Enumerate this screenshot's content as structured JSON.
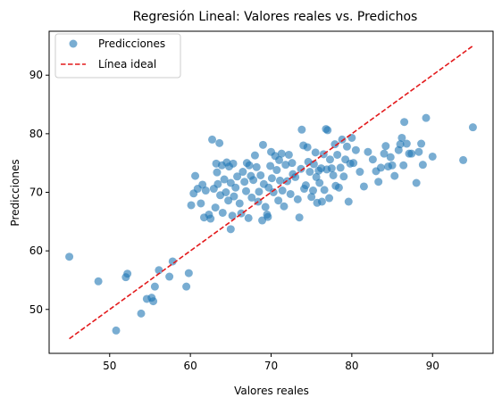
{
  "chart_data": {
    "type": "scatter",
    "title": "Regresión Lineal: Valores reales vs. Predichos",
    "xlabel": "Valores reales",
    "ylabel": "Predicciones",
    "xlim": [
      42.5,
      97.5
    ],
    "ylim": [
      42.5,
      97.5
    ],
    "xticks": [
      50,
      60,
      70,
      80,
      90
    ],
    "yticks": [
      50,
      60,
      70,
      80,
      90
    ],
    "grid": false,
    "legend_position": "top-left",
    "colors": {
      "points": "#1f77b4",
      "ideal_line": "#e31a1c"
    },
    "series": [
      {
        "name": "Predicciones",
        "kind": "scatter",
        "points": [
          [
            45.0,
            59.0
          ],
          [
            48.6,
            54.8
          ],
          [
            50.8,
            46.4
          ],
          [
            52.0,
            55.5
          ],
          [
            52.2,
            56.1
          ],
          [
            53.9,
            49.3
          ],
          [
            54.6,
            51.8
          ],
          [
            55.2,
            52.0
          ],
          [
            55.4,
            51.4
          ],
          [
            55.6,
            53.9
          ],
          [
            56.1,
            56.7
          ],
          [
            57.4,
            55.6
          ],
          [
            57.8,
            58.2
          ],
          [
            59.5,
            53.9
          ],
          [
            59.8,
            56.2
          ],
          [
            60.1,
            67.8
          ],
          [
            60.4,
            69.8
          ],
          [
            60.6,
            72.8
          ],
          [
            60.9,
            70.6
          ],
          [
            61.3,
            68.1
          ],
          [
            61.5,
            71.3
          ],
          [
            61.7,
            65.7
          ],
          [
            61.9,
            70.3
          ],
          [
            62.3,
            66.2
          ],
          [
            62.5,
            65.5
          ],
          [
            62.7,
            79.0
          ],
          [
            62.9,
            70.6
          ],
          [
            63.1,
            67.4
          ],
          [
            63.2,
            74.9
          ],
          [
            63.3,
            73.4
          ],
          [
            63.4,
            71.4
          ],
          [
            63.6,
            78.4
          ],
          [
            63.7,
            69.5
          ],
          [
            63.9,
            74.6
          ],
          [
            64.0,
            66.5
          ],
          [
            64.2,
            72.2
          ],
          [
            64.4,
            70.0
          ],
          [
            64.5,
            75.1
          ],
          [
            64.7,
            68.6
          ],
          [
            64.8,
            74.4
          ],
          [
            65.0,
            71.6
          ],
          [
            65.0,
            63.7
          ],
          [
            65.2,
            66.0
          ],
          [
            65.3,
            74.9
          ],
          [
            65.4,
            69.3
          ],
          [
            65.6,
            70.8
          ],
          [
            65.8,
            72.7
          ],
          [
            66.1,
            68.1
          ],
          [
            66.3,
            66.4
          ],
          [
            66.5,
            73.5
          ],
          [
            66.7,
            71.8
          ],
          [
            66.9,
            70.2
          ],
          [
            67.0,
            75.0
          ],
          [
            67.2,
            65.6
          ],
          [
            67.3,
            74.6
          ],
          [
            67.5,
            72.8
          ],
          [
            67.6,
            69.1
          ],
          [
            67.8,
            72.1
          ],
          [
            68.0,
            76.3
          ],
          [
            68.2,
            74.3
          ],
          [
            68.4,
            68.4
          ],
          [
            68.5,
            70.1
          ],
          [
            68.7,
            72.9
          ],
          [
            68.9,
            65.2
          ],
          [
            69.0,
            78.1
          ],
          [
            69.1,
            71.4
          ],
          [
            69.3,
            67.5
          ],
          [
            69.5,
            66.2
          ],
          [
            69.6,
            65.8
          ],
          [
            69.7,
            70.8
          ],
          [
            69.9,
            74.5
          ],
          [
            70.0,
            76.9
          ],
          [
            70.1,
            72.4
          ],
          [
            70.3,
            70.0
          ],
          [
            70.5,
            76.2
          ],
          [
            70.7,
            73.8
          ],
          [
            70.9,
            68.6
          ],
          [
            71.0,
            75.5
          ],
          [
            71.1,
            72.0
          ],
          [
            71.3,
            76.6
          ],
          [
            71.4,
            70.3
          ],
          [
            71.6,
            67.6
          ],
          [
            71.8,
            74.7
          ],
          [
            72.0,
            71.9
          ],
          [
            72.2,
            76.4
          ],
          [
            72.4,
            69.7
          ],
          [
            72.6,
            75.0
          ],
          [
            72.7,
            73.1
          ],
          [
            73.0,
            72.6
          ],
          [
            73.3,
            68.8
          ],
          [
            73.5,
            65.7
          ],
          [
            73.7,
            74.0
          ],
          [
            73.8,
            80.7
          ],
          [
            74.0,
            78.0
          ],
          [
            74.1,
            70.6
          ],
          [
            74.3,
            71.2
          ],
          [
            74.5,
            77.7
          ],
          [
            74.6,
            75.2
          ],
          [
            74.8,
            73.5
          ],
          [
            75.0,
            69.2
          ],
          [
            75.2,
            70.3
          ],
          [
            75.3,
            74.8
          ],
          [
            75.5,
            76.8
          ],
          [
            75.6,
            72.6
          ],
          [
            75.7,
            68.2
          ],
          [
            75.9,
            73.7
          ],
          [
            76.0,
            71.6
          ],
          [
            76.2,
            74.1
          ],
          [
            76.3,
            68.4
          ],
          [
            76.5,
            76.5
          ],
          [
            76.6,
            70.4
          ],
          [
            76.8,
            80.8
          ],
          [
            76.9,
            73.9
          ],
          [
            77.0,
            80.6
          ],
          [
            77.2,
            69.0
          ],
          [
            77.3,
            75.6
          ],
          [
            77.5,
            74.1
          ],
          [
            77.7,
            72.9
          ],
          [
            77.9,
            78.2
          ],
          [
            78.0,
            71.1
          ],
          [
            78.2,
            76.4
          ],
          [
            78.4,
            70.8
          ],
          [
            78.6,
            74.2
          ],
          [
            78.8,
            79.0
          ],
          [
            79.0,
            72.7
          ],
          [
            79.2,
            75.6
          ],
          [
            79.4,
            77.8
          ],
          [
            79.6,
            68.4
          ],
          [
            79.8,
            74.9
          ],
          [
            80.0,
            79.3
          ],
          [
            80.2,
            75.0
          ],
          [
            80.5,
            77.2
          ],
          [
            81.0,
            73.5
          ],
          [
            81.5,
            71.0
          ],
          [
            82.0,
            76.9
          ],
          [
            82.6,
            75.6
          ],
          [
            83.0,
            73.6
          ],
          [
            83.3,
            71.8
          ],
          [
            83.6,
            74.2
          ],
          [
            84.0,
            76.6
          ],
          [
            84.2,
            77.9
          ],
          [
            84.5,
            74.4
          ],
          [
            84.8,
            76.0
          ],
          [
            85.0,
            74.6
          ],
          [
            85.3,
            72.8
          ],
          [
            85.8,
            77.2
          ],
          [
            86.0,
            78.2
          ],
          [
            86.2,
            79.3
          ],
          [
            86.4,
            74.6
          ],
          [
            86.5,
            82.0
          ],
          [
            86.8,
            78.3
          ],
          [
            87.1,
            76.6
          ],
          [
            87.4,
            76.6
          ],
          [
            88.0,
            71.6
          ],
          [
            88.3,
            76.9
          ],
          [
            88.6,
            78.3
          ],
          [
            88.8,
            74.7
          ],
          [
            89.2,
            82.7
          ],
          [
            90.0,
            76.1
          ],
          [
            93.8,
            75.5
          ],
          [
            95.0,
            81.1
          ]
        ]
      },
      {
        "name": "Línea ideal",
        "kind": "line",
        "points": [
          [
            45,
            45
          ],
          [
            95,
            95
          ]
        ]
      }
    ]
  }
}
